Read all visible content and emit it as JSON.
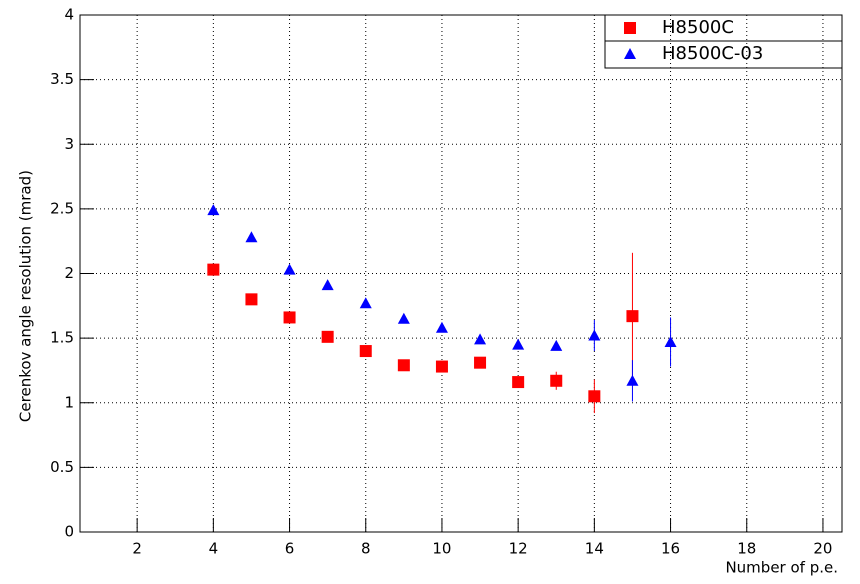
{
  "chart_data": {
    "type": "scatter",
    "xlabel": "Number of p.e.",
    "ylabel": "Cerenkov angle resolution (mrad)",
    "xlim": [
      0.5,
      20.5
    ],
    "xticks": [
      2,
      4,
      6,
      8,
      10,
      12,
      14,
      16,
      18,
      20
    ],
    "ylim": [
      0,
      4
    ],
    "yticks": [
      0,
      0.5,
      1,
      1.5,
      2,
      2.5,
      3,
      3.5,
      4
    ],
    "grid": true,
    "legend": "top-right",
    "series": [
      {
        "name": "H8500C",
        "color": "#ff0000",
        "marker": "square",
        "x": [
          4,
          5,
          6,
          7,
          8,
          9,
          10,
          11,
          12,
          13,
          14,
          15
        ],
        "values": [
          2.03,
          1.8,
          1.66,
          1.51,
          1.4,
          1.29,
          1.28,
          1.31,
          1.16,
          1.17,
          1.05,
          1.67
        ],
        "errors": [
          0.01,
          0.01,
          0.01,
          0.01,
          0.01,
          0.01,
          0.01,
          0.02,
          0.03,
          0.07,
          0.13,
          0.49
        ]
      },
      {
        "name": "H8500C-03",
        "color": "#0000ff",
        "marker": "triangle",
        "x": [
          4,
          5,
          6,
          7,
          8,
          9,
          10,
          11,
          12,
          13,
          14,
          15,
          16
        ],
        "values": [
          2.49,
          2.28,
          2.03,
          1.91,
          1.77,
          1.65,
          1.58,
          1.49,
          1.45,
          1.44,
          1.52,
          1.17,
          1.47
        ],
        "errors": [
          0.01,
          0.01,
          0.01,
          0.01,
          0.01,
          0.01,
          0.01,
          0.01,
          0.02,
          0.03,
          0.12,
          0.16,
          0.19
        ]
      }
    ]
  }
}
